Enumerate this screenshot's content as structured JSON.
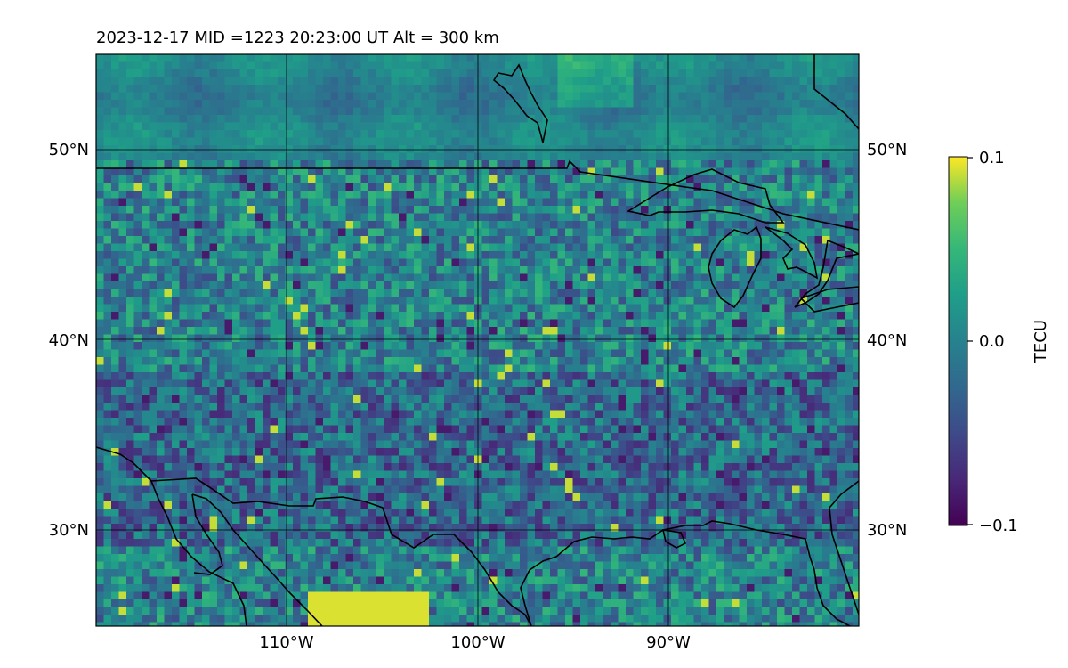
{
  "title": "2023-12-17  MID =1223    20:23:00  UT  Alt = 300 km",
  "map": {
    "lat_labels_left": [
      "50°N",
      "40°N",
      "30°N"
    ],
    "lat_labels_right": [
      "50°N",
      "40°N",
      "30°N"
    ],
    "lon_labels": [
      "110°W",
      "100°W",
      "90°W"
    ],
    "lon_range": [
      -120,
      -80
    ],
    "lat_range": [
      25,
      55
    ],
    "gridline_lons": [
      -110,
      -100,
      -90
    ],
    "gridline_lats": [
      30,
      40,
      50
    ],
    "colormap": "viridis",
    "grid": true
  },
  "colorbar": {
    "label": "TECU",
    "ticks": [
      "0.1",
      "0.0",
      "−0.1"
    ],
    "range": [
      -0.1,
      0.1
    ]
  },
  "colors": {
    "viridis_low": "#440154",
    "viridis_mid": "#21918c",
    "viridis_high": "#fde725",
    "coastline": "#000000"
  }
}
